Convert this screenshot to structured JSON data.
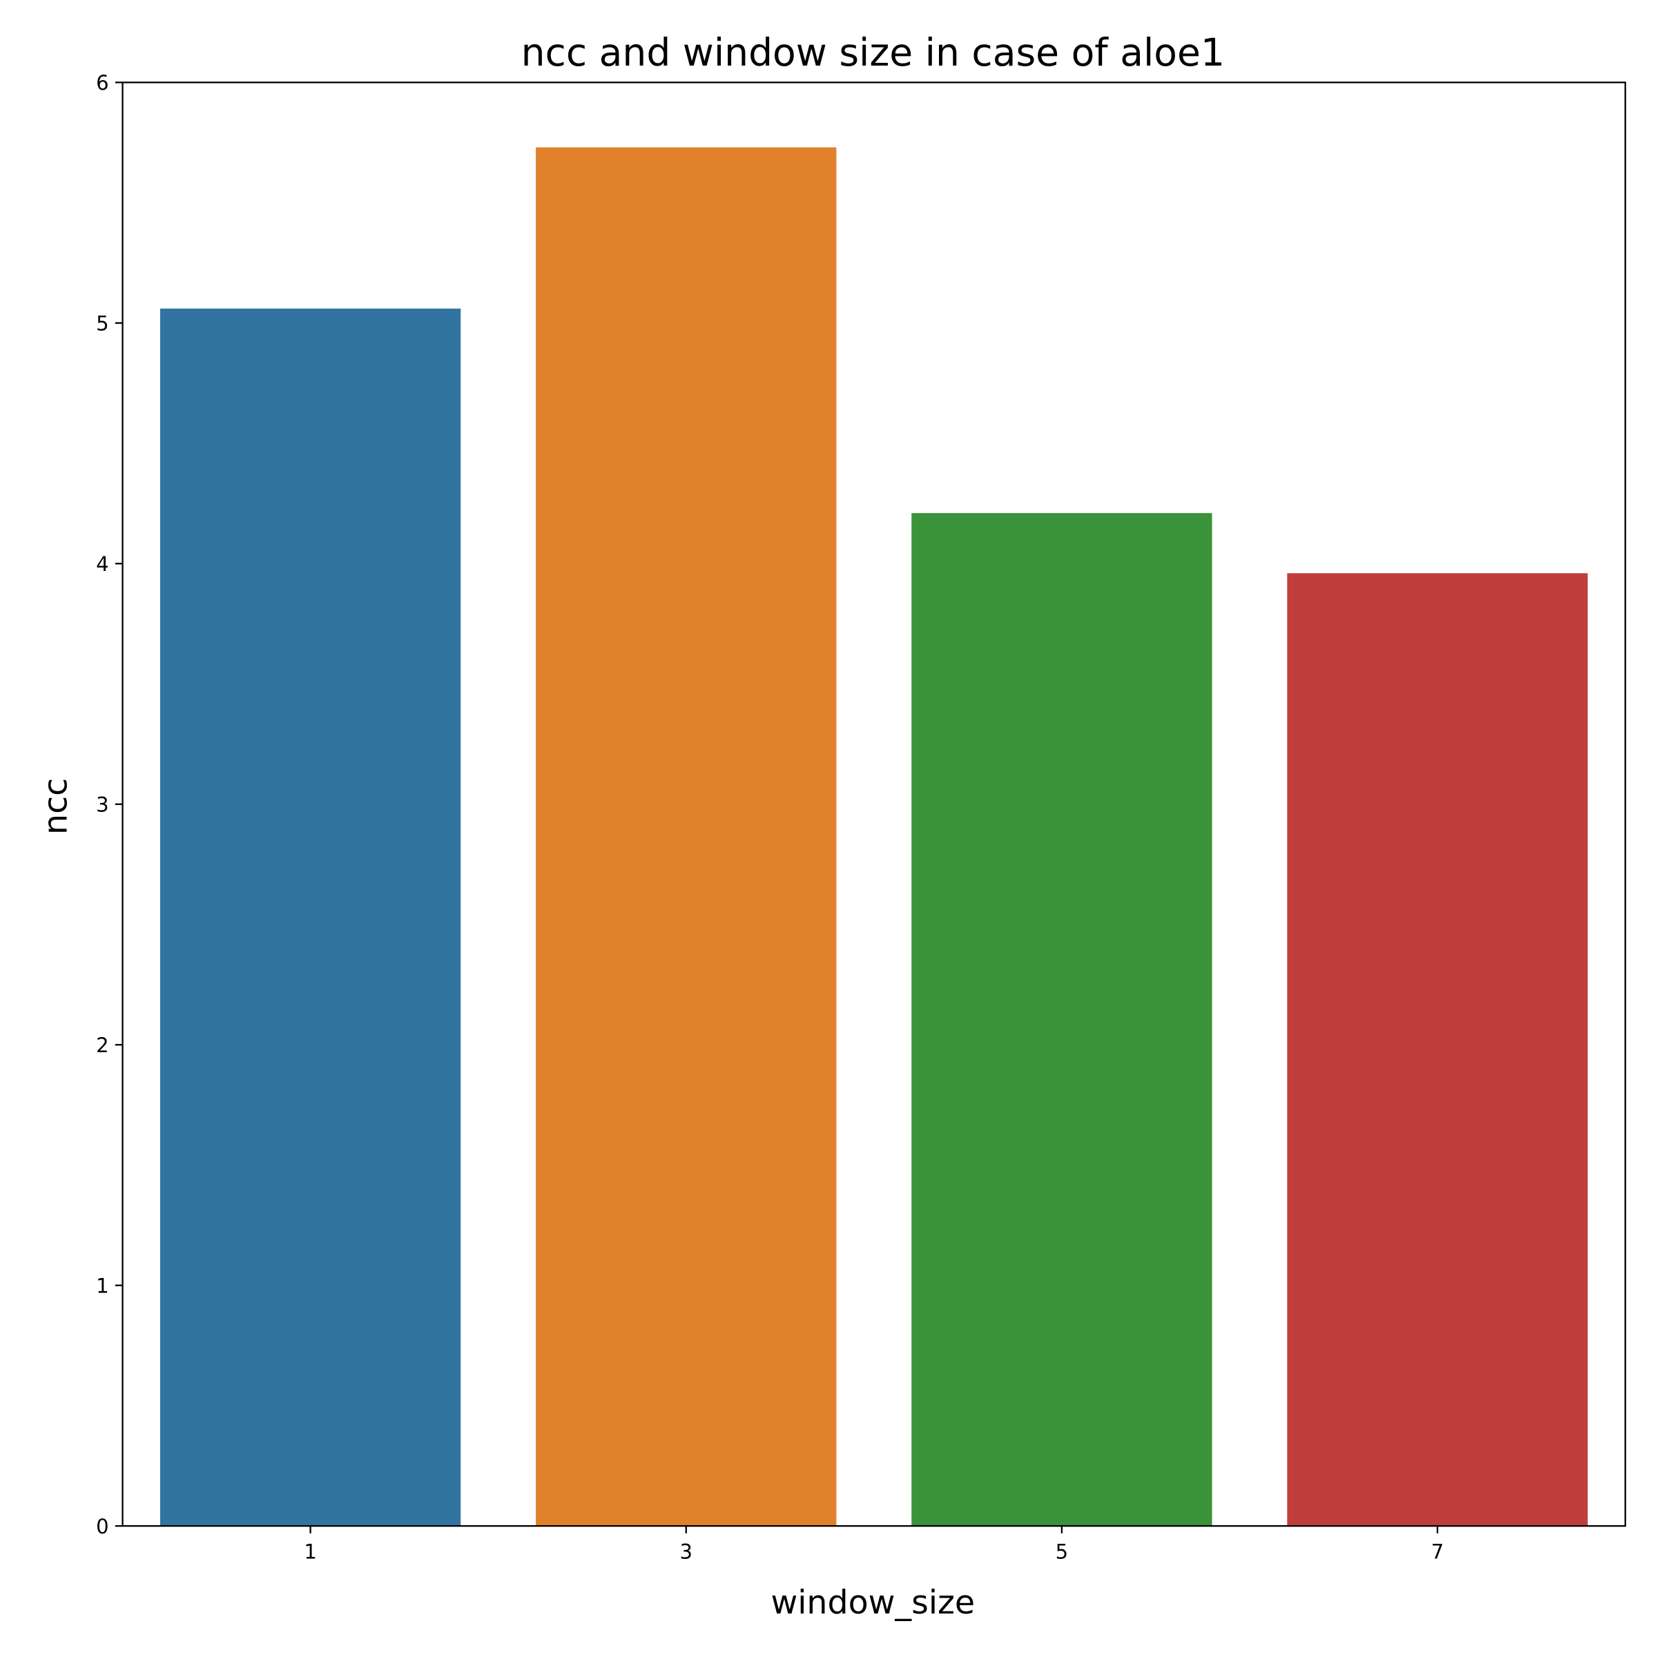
{
  "chart_data": {
    "type": "bar",
    "title": "ncc and window size in case of aloe1",
    "xlabel": "window_size",
    "ylabel": "ncc",
    "categories": [
      "1",
      "3",
      "5",
      "7"
    ],
    "values": [
      5.06,
      5.73,
      4.21,
      3.96
    ],
    "colors": [
      "#3274a1",
      "#e1812c",
      "#3a923a",
      "#c03d3e"
    ],
    "ylim": [
      0,
      6
    ],
    "yticks": [
      0,
      1,
      2,
      3,
      4,
      5,
      6
    ],
    "grid": false,
    "legend": "none"
  }
}
